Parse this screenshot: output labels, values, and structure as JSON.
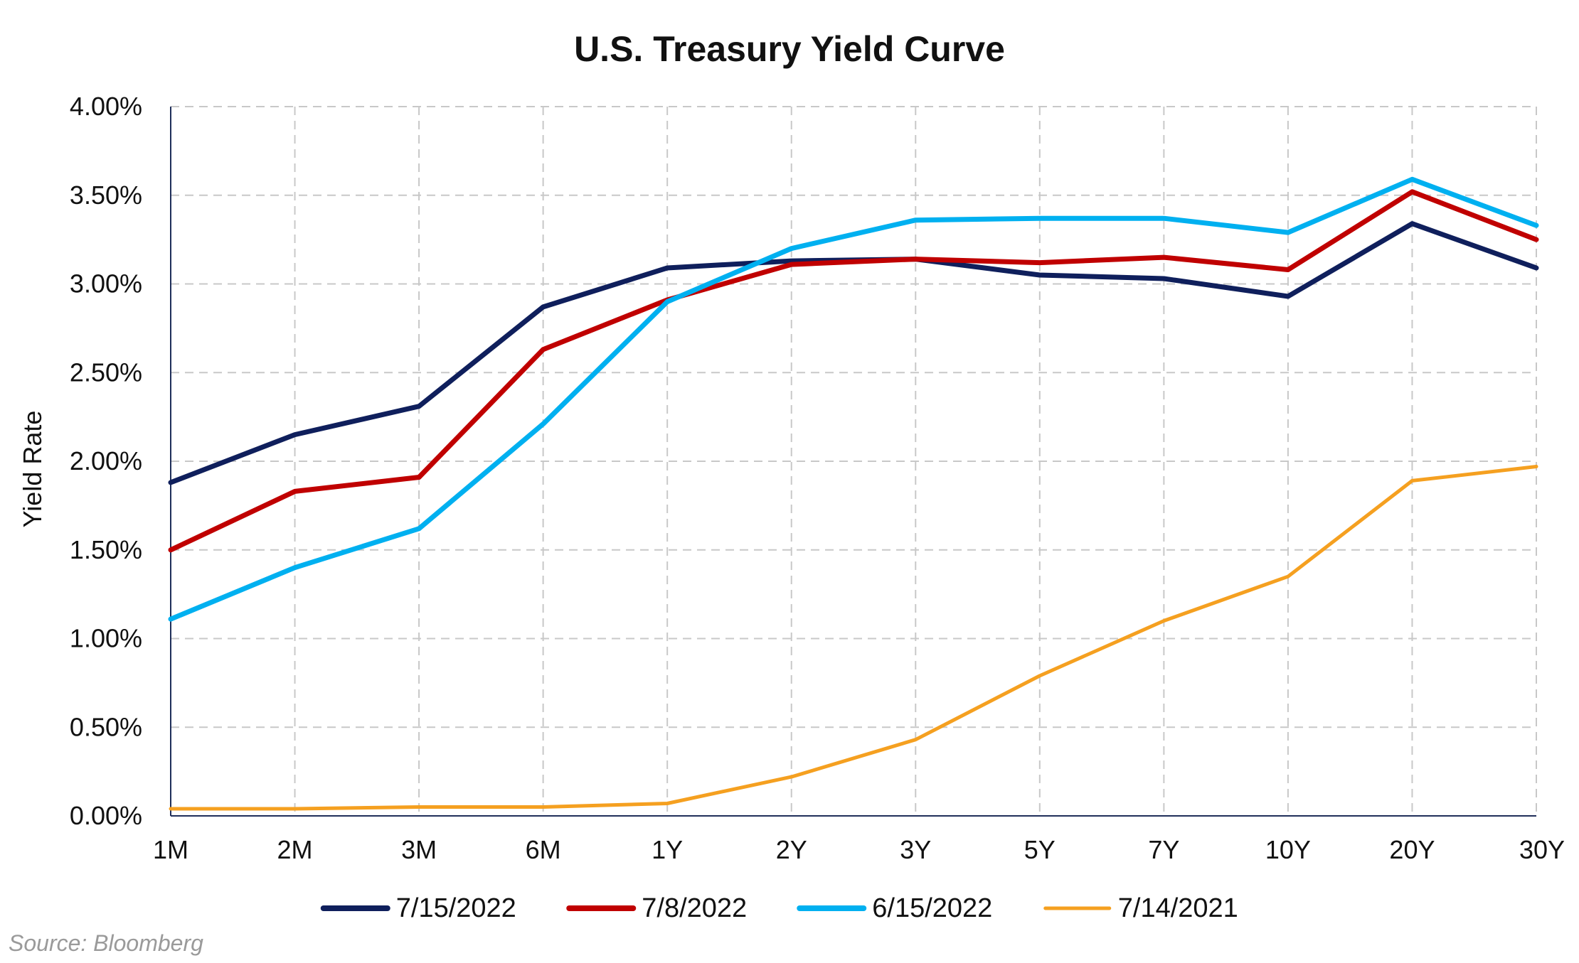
{
  "chart_data": {
    "type": "line",
    "title": "U.S. Treasury Yield Curve",
    "xlabel": "",
    "ylabel": "Yield Rate",
    "categories": [
      "1M",
      "2M",
      "3M",
      "6M",
      "1Y",
      "2Y",
      "3Y",
      "5Y",
      "7Y",
      "10Y",
      "20Y",
      "30Y"
    ],
    "y_ticks": [
      "0.00%",
      "0.50%",
      "1.00%",
      "1.50%",
      "2.00%",
      "2.50%",
      "3.00%",
      "3.50%",
      "4.00%"
    ],
    "ylim": [
      0,
      4
    ],
    "grid": true,
    "legend_position": "bottom",
    "series": [
      {
        "name": "7/15/2022",
        "color": "#0f1f5c",
        "values": [
          1.88,
          2.15,
          2.31,
          2.87,
          3.09,
          3.13,
          3.14,
          3.05,
          3.03,
          2.93,
          3.34,
          3.09
        ]
      },
      {
        "name": "7/8/2022",
        "color": "#c00000",
        "values": [
          1.5,
          1.83,
          1.91,
          2.63,
          2.91,
          3.11,
          3.14,
          3.12,
          3.15,
          3.08,
          3.52,
          3.25
        ]
      },
      {
        "name": "6/15/2022",
        "color": "#00b0f0",
        "values": [
          1.11,
          1.4,
          1.62,
          2.21,
          2.9,
          3.2,
          3.36,
          3.37,
          3.37,
          3.29,
          3.59,
          3.33
        ]
      },
      {
        "name": "7/14/2021",
        "color": "#f5a020",
        "values": [
          0.04,
          0.04,
          0.05,
          0.05,
          0.07,
          0.22,
          0.43,
          0.79,
          1.1,
          1.35,
          1.89,
          1.97
        ]
      }
    ]
  },
  "source": "Source: Bloomberg"
}
